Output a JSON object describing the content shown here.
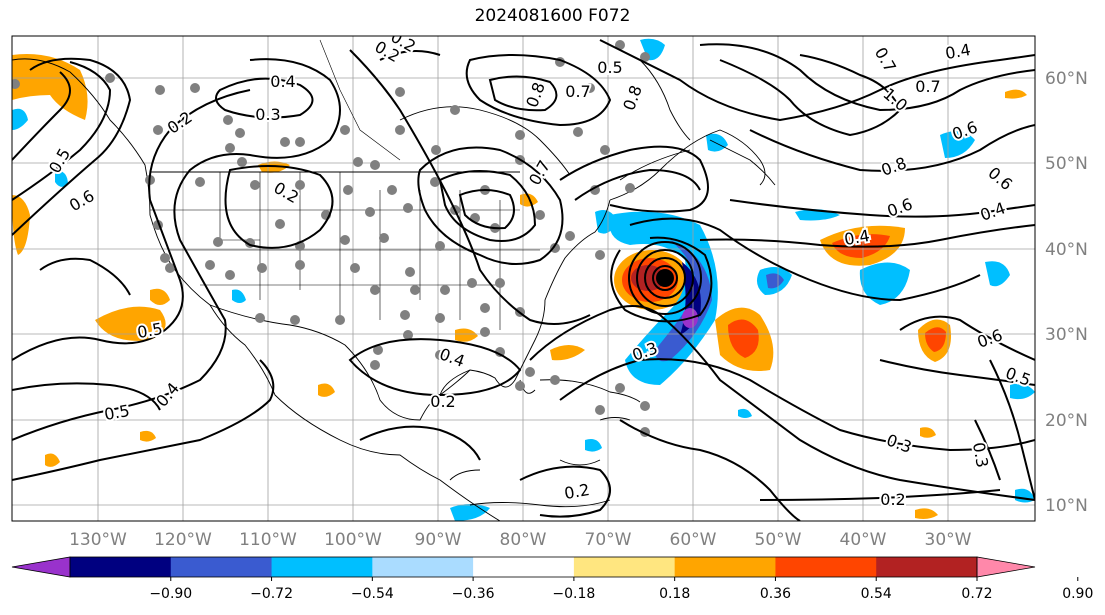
{
  "title": "2024081600 F072",
  "map": {
    "lon_labels": [
      "130°W",
      "120°W",
      "110°W",
      "100°W",
      "90°W",
      "80°W",
      "70°W",
      "60°W",
      "50°W",
      "40°W",
      "30°W"
    ],
    "lat_labels": [
      "60°N",
      "50°N",
      "40°N",
      "30°N",
      "20°N",
      "10°N"
    ],
    "label_color": "#808080",
    "storm_marker": {
      "lon": -63.5,
      "lat": 36.5
    }
  },
  "contour_labels": [
    {
      "text": "0.4"
    },
    {
      "text": "0.3"
    },
    {
      "text": "0.2"
    },
    {
      "text": "0.2"
    },
    {
      "text": "0.8"
    },
    {
      "text": "0.7"
    },
    {
      "text": "0.5"
    },
    {
      "text": "0.8"
    },
    {
      "text": "1.0"
    },
    {
      "text": "0.7"
    },
    {
      "text": "0.6"
    },
    {
      "text": "0.6"
    },
    {
      "text": "0.8"
    },
    {
      "text": "0.4"
    },
    {
      "text": "0.6"
    },
    {
      "text": "0.4"
    },
    {
      "text": "0.6"
    },
    {
      "text": "0.5"
    },
    {
      "text": "0.3"
    },
    {
      "text": "0.4"
    },
    {
      "text": "0.2"
    },
    {
      "text": "0.5"
    },
    {
      "text": "0.4"
    },
    {
      "text": "0.2"
    },
    {
      "text": "0.5"
    },
    {
      "text": "0.2"
    },
    {
      "text": "0.2"
    },
    {
      "text": "0.3"
    },
    {
      "text": "0.7"
    },
    {
      "text": "0.6"
    },
    {
      "text": "0.5"
    },
    {
      "text": "0.7"
    },
    {
      "text": "0.4"
    },
    {
      "text": "0.2"
    },
    {
      "text": "0.3"
    }
  ],
  "colorbar": {
    "colors": [
      "#9932cc",
      "#000080",
      "#3a5bd0",
      "#00bfff",
      "#aadcff",
      "#ffffff",
      "#ffe680",
      "#ffa500",
      "#ff4500",
      "#b22222",
      "#ff88aa"
    ],
    "ticks": [
      "−0.90",
      "−0.72",
      "−0.54",
      "−0.36",
      "−0.18",
      "0.18",
      "0.36",
      "0.54",
      "0.72",
      "0.90"
    ]
  }
}
